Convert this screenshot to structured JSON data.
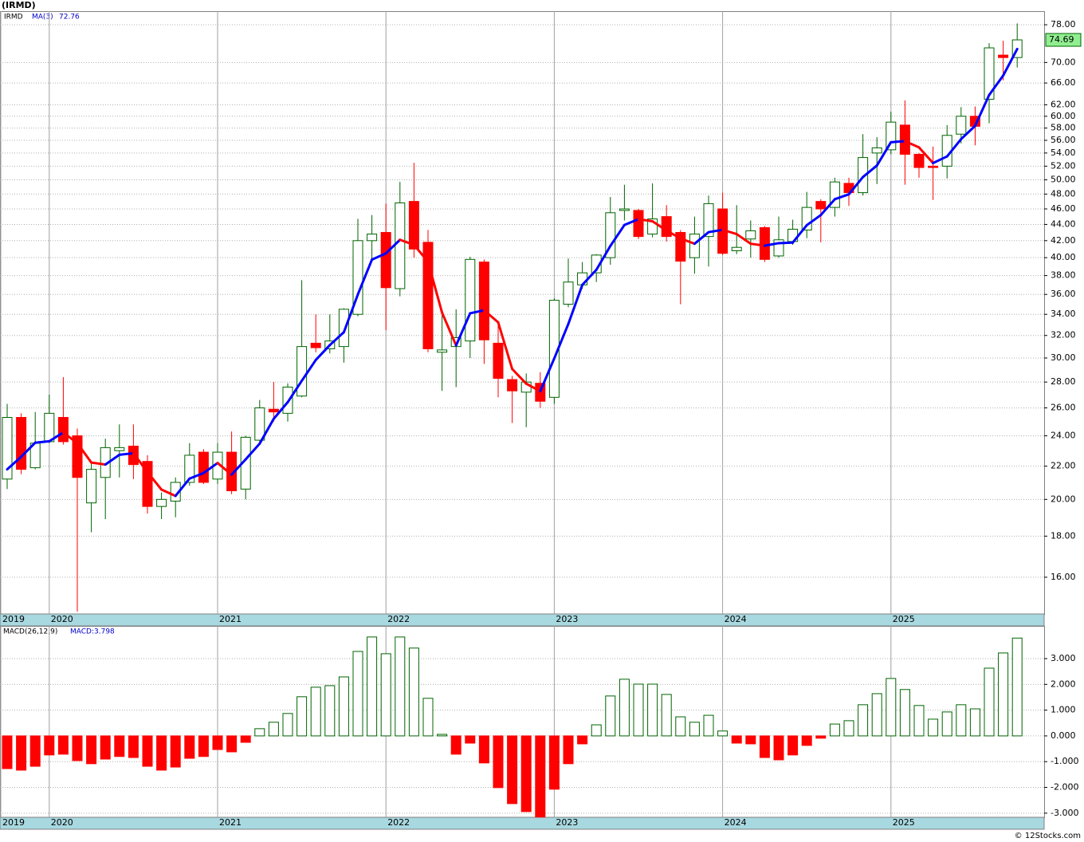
{
  "chart_data": [
    {
      "type": "candlestick",
      "title": "(IRMD)",
      "categories": [
        "2019",
        null,
        null,
        "2020",
        null,
        null,
        null,
        null,
        null,
        null,
        null,
        null,
        null,
        null,
        null,
        "2021",
        null,
        null,
        null,
        null,
        null,
        null,
        null,
        null,
        null,
        null,
        null,
        "2022",
        null,
        null,
        null,
        null,
        null,
        null,
        null,
        null,
        null,
        null,
        null,
        "2023",
        null,
        null,
        null,
        null,
        null,
        null,
        null,
        null,
        null,
        null,
        null,
        "2024",
        null,
        null,
        null,
        null,
        null,
        null,
        null,
        null,
        null,
        null,
        null,
        "2025",
        null,
        null,
        null,
        null,
        null,
        null,
        null,
        null,
        null
      ],
      "series": [
        {
          "name": "IRMD",
          "color": "#006400",
          "down_color": "#ff0000",
          "open": [
            21.2,
            25.3,
            21.9,
            23.6,
            25.3,
            24.0,
            19.8,
            21.3,
            23.0,
            23.3,
            22.3,
            19.6,
            19.9,
            21.0,
            22.9,
            21.2,
            22.9,
            20.6,
            23.7,
            25.9,
            25.6,
            26.9,
            31.3,
            30.8,
            31.0,
            34.0,
            42.0,
            43.0,
            36.6,
            47.0,
            41.8,
            30.5,
            31.0,
            31.5,
            39.5,
            31.3,
            28.2,
            27.2,
            27.9,
            26.8,
            35.0,
            37.0,
            38.3,
            40.0,
            45.8,
            45.8,
            42.8,
            45.0,
            43.0,
            40.0,
            42.5,
            46.0,
            40.8,
            42.2,
            43.6,
            40.2,
            41.9,
            43.3,
            47.0,
            46.2,
            49.5,
            48.2,
            54.0,
            54.5,
            58.5,
            53.8,
            52.0,
            52.0,
            57.0,
            60.0,
            63.0,
            71.5,
            71.0
          ],
          "high": [
            26.3,
            25.6,
            25.7,
            27.0,
            28.4,
            24.5,
            22.3,
            23.8,
            24.8,
            24.8,
            22.7,
            20.4,
            21.3,
            23.5,
            23.1,
            23.5,
            24.3,
            24.0,
            26.6,
            28.0,
            27.9,
            37.5,
            34.0,
            34.0,
            34.6,
            44.7,
            45.2,
            46.7,
            49.7,
            52.5,
            43.3,
            34.5,
            34.5,
            40.1,
            39.8,
            33.3,
            28.5,
            28.7,
            28.8,
            35.6,
            39.9,
            39.5,
            40.4,
            47.6,
            49.3,
            46.0,
            49.5,
            46.5,
            43.3,
            45.0,
            47.8,
            48.2,
            46.5,
            44.5,
            43.8,
            45.0,
            44.6,
            48.3,
            47.3,
            50.3,
            50.3,
            57.0,
            56.5,
            60.8,
            62.8,
            54.0,
            55.0,
            58.5,
            61.6,
            61.7,
            74.0,
            74.5,
            78.3
          ],
          "low": [
            20.6,
            21.5,
            21.8,
            23.5,
            23.4,
            14.5,
            18.2,
            18.9,
            21.3,
            21.2,
            19.2,
            18.9,
            19.0,
            20.8,
            20.9,
            20.9,
            20.3,
            20.0,
            23.5,
            25.0,
            25.0,
            26.8,
            30.5,
            30.4,
            29.6,
            33.8,
            39.5,
            32.5,
            35.8,
            40.0,
            30.5,
            27.3,
            27.6,
            30.0,
            29.5,
            26.8,
            24.9,
            24.6,
            26.0,
            26.3,
            34.7,
            36.6,
            37.3,
            39.2,
            44.5,
            42.2,
            42.4,
            41.9,
            35.0,
            38.2,
            39.0,
            40.3,
            40.4,
            40.0,
            39.5,
            40.0,
            41.5,
            42.3,
            41.8,
            45.0,
            46.4,
            47.8,
            49.4,
            53.8,
            49.3,
            50.3,
            47.2,
            50.2,
            55.5,
            55.2,
            58.8,
            66.5,
            69.0
          ],
          "close": [
            25.3,
            21.8,
            23.5,
            25.6,
            23.6,
            21.3,
            21.8,
            23.2,
            23.2,
            22.1,
            19.6,
            20.0,
            21.0,
            22.7,
            21.0,
            22.9,
            20.5,
            23.9,
            26.0,
            25.7,
            27.6,
            31.0,
            30.9,
            31.5,
            34.5,
            42.0,
            42.8,
            36.7,
            46.8,
            41.0,
            30.8,
            30.7,
            31.8,
            39.8,
            31.6,
            28.3,
            27.3,
            28.0,
            26.5,
            35.4,
            37.3,
            38.3,
            40.3,
            45.5,
            46.0,
            42.5,
            44.7,
            42.5,
            39.6,
            42.8,
            46.7,
            40.5,
            41.2,
            43.2,
            39.8,
            42.1,
            43.4,
            46.2,
            46.0,
            49.7,
            48.2,
            53.3,
            54.8,
            59.0,
            53.8,
            51.8,
            51.8,
            56.8,
            60.0,
            58.3,
            73.0,
            71.0,
            74.69
          ],
          "last_color": "#90ee90"
        },
        {
          "name": "MA(3)",
          "type": "line",
          "color": "#0000ff",
          "down_color": "#ff0000",
          "values": [
            21.8,
            22.6,
            23.53,
            23.63,
            24.23,
            23.5,
            22.23,
            22.1,
            22.73,
            22.83,
            21.63,
            20.57,
            20.2,
            21.23,
            21.57,
            22.2,
            21.47,
            22.43,
            23.47,
            25.2,
            26.43,
            28.1,
            29.83,
            31.13,
            32.3,
            36.0,
            39.77,
            40.5,
            42.1,
            41.5,
            39.53,
            34.17,
            31.1,
            34.1,
            34.4,
            33.23,
            29.07,
            27.87,
            27.27,
            29.97,
            33.07,
            37.0,
            38.63,
            41.37,
            43.93,
            44.67,
            44.4,
            43.23,
            42.27,
            41.63,
            43.03,
            43.33,
            42.8,
            41.63,
            41.4,
            41.7,
            41.77,
            43.9,
            45.2,
            47.3,
            47.97,
            50.4,
            52.1,
            55.7,
            55.87,
            54.87,
            52.47,
            53.47,
            56.2,
            58.37,
            63.77,
            67.43,
            72.76
          ]
        }
      ],
      "log_scale": true,
      "ylim": [
        14.4,
        81.1
      ],
      "yticks": [
        {
          "value": 16,
          "label": "16.00"
        },
        {
          "value": 18,
          "label": "18.00"
        },
        {
          "value": 20,
          "label": "20.00"
        },
        {
          "value": 22,
          "label": "22.00"
        },
        {
          "value": 24,
          "label": "24.00"
        },
        {
          "value": 26,
          "label": "26.00"
        },
        {
          "value": 28,
          "label": "28.00"
        },
        {
          "value": 30,
          "label": "30.00"
        },
        {
          "value": 32,
          "label": "32.00"
        },
        {
          "value": 34,
          "label": "34.00"
        },
        {
          "value": 36,
          "label": "36.00"
        },
        {
          "value": 38,
          "label": "38.00"
        },
        {
          "value": 40,
          "label": "40.00"
        },
        {
          "value": 42,
          "label": "42.00"
        },
        {
          "value": 44,
          "label": "44.00"
        },
        {
          "value": 46,
          "label": "46.00"
        },
        {
          "value": 48,
          "label": "48.00"
        },
        {
          "value": 50,
          "label": "50.00"
        },
        {
          "value": 52,
          "label": "52.00"
        },
        {
          "value": 54,
          "label": "54.00"
        },
        {
          "value": 56,
          "label": "56.00"
        },
        {
          "value": 58,
          "label": "58.00"
        },
        {
          "value": 60,
          "label": "60.00"
        },
        {
          "value": 62,
          "label": "62.00"
        },
        {
          "value": 66,
          "label": "66.00"
        },
        {
          "value": 70,
          "label": "70.00"
        },
        {
          "value": 78,
          "label": "78.00"
        }
      ],
      "grid": true,
      "axis_band_color": "#a8d8e0"
    },
    {
      "type": "bar",
      "title": "MACD(26,12,9)",
      "series": [
        {
          "name": "MACD",
          "color": "#006400",
          "down_color": "#ff0000",
          "latest_label": "MACD:3.798",
          "values": [
            -1.27,
            -1.33,
            -1.18,
            -0.74,
            -0.71,
            -0.96,
            -1.08,
            -0.9,
            -0.8,
            -0.84,
            -1.18,
            -1.33,
            -1.21,
            -0.87,
            -0.8,
            -0.53,
            -0.62,
            -0.25,
            0.28,
            0.53,
            0.87,
            1.52,
            1.89,
            1.95,
            2.29,
            3.28,
            3.84,
            3.19,
            3.84,
            3.41,
            1.46,
            0.06,
            -0.71,
            -0.28,
            -1.05,
            -2.01,
            -2.63,
            -2.94,
            -3.15,
            -2.07,
            -1.08,
            -0.31,
            0.43,
            1.55,
            2.2,
            2.01,
            2.01,
            1.61,
            0.74,
            0.53,
            0.8,
            0.19,
            -0.28,
            -0.31,
            -0.84,
            -0.93,
            -0.74,
            -0.37,
            -0.09,
            0.46,
            0.59,
            1.21,
            1.64,
            2.23,
            1.8,
            1.18,
            0.65,
            0.93,
            1.21,
            1.05,
            2.63,
            3.22,
            3.798
          ]
        }
      ],
      "ylim": [
        -3.16,
        4.27
      ],
      "yticks": [
        {
          "value": 3,
          "label": "3.000"
        },
        {
          "value": 2,
          "label": "2.000"
        },
        {
          "value": 1,
          "label": "1.000"
        },
        {
          "value": 0,
          "label": "0.000"
        },
        {
          "value": -1,
          "label": "-1.000"
        },
        {
          "value": -2,
          "label": "-2.000"
        },
        {
          "value": -3,
          "label": "-3.000"
        }
      ],
      "grid": true
    }
  ],
  "credit": "© 12Stocks.com"
}
